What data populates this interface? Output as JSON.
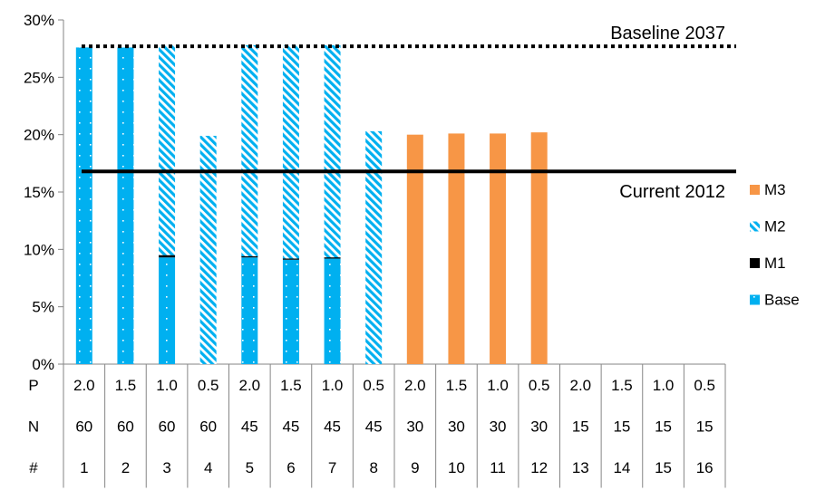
{
  "chart_data": {
    "type": "bar",
    "stacked": true,
    "title": "",
    "xlabel": "",
    "ylabel": "",
    "ylim": [
      0,
      0.3
    ],
    "yticks": [
      "0%",
      "5%",
      "10%",
      "15%",
      "20%",
      "25%",
      "30%"
    ],
    "categories": [
      "1",
      "2",
      "3",
      "4",
      "5",
      "6",
      "7",
      "8",
      "9",
      "10",
      "11",
      "12",
      "13",
      "14",
      "15",
      "16"
    ],
    "table_rows": [
      {
        "label": "P",
        "values": [
          "2.0",
          "1.5",
          "1.0",
          "0.5",
          "2.0",
          "1.5",
          "1.0",
          "0.5",
          "2.0",
          "1.5",
          "1.0",
          "0.5",
          "2.0",
          "1.5",
          "1.0",
          "0.5"
        ]
      },
      {
        "label": "N",
        "values": [
          "60",
          "60",
          "60",
          "60",
          "45",
          "45",
          "45",
          "45",
          "30",
          "30",
          "30",
          "30",
          "15",
          "15",
          "15",
          "15"
        ]
      },
      {
        "label": "#",
        "values": [
          "1",
          "2",
          "3",
          "4",
          "5",
          "6",
          "7",
          "8",
          "9",
          "10",
          "11",
          "12",
          "13",
          "14",
          "15",
          "16"
        ]
      }
    ],
    "series": [
      {
        "name": "Base",
        "color": "#00B0F0",
        "pattern": "dots",
        "values": [
          0.276,
          0.276,
          0.093,
          0,
          0.093,
          0.091,
          0.092,
          0,
          0,
          0,
          0,
          0,
          0,
          0,
          0,
          0
        ]
      },
      {
        "name": "M1",
        "color": "#000000",
        "pattern": "solid",
        "values": [
          0,
          0,
          0.002,
          0,
          0.001,
          0.001,
          0.001,
          0,
          0,
          0,
          0,
          0,
          0,
          0,
          0,
          0
        ]
      },
      {
        "name": "M2",
        "color": "#00B0F0",
        "pattern": "diagonal",
        "values": [
          0,
          0,
          0.183,
          0.199,
          0.184,
          0.186,
          0.185,
          0.203,
          0,
          0,
          0,
          0,
          0,
          0,
          0,
          0
        ]
      },
      {
        "name": "M3",
        "color": "#F79646",
        "pattern": "solid",
        "values": [
          0,
          0,
          0,
          0,
          0,
          0,
          0,
          0,
          0.2,
          0.201,
          0.201,
          0.202,
          0,
          0,
          0,
          0
        ]
      }
    ],
    "reference_lines": [
      {
        "label": "Baseline 2037",
        "value": 0.277,
        "style": "dotted"
      },
      {
        "label": "Current 2012",
        "value": 0.168,
        "style": "solid"
      }
    ],
    "legend_position": "right",
    "grid": false
  }
}
